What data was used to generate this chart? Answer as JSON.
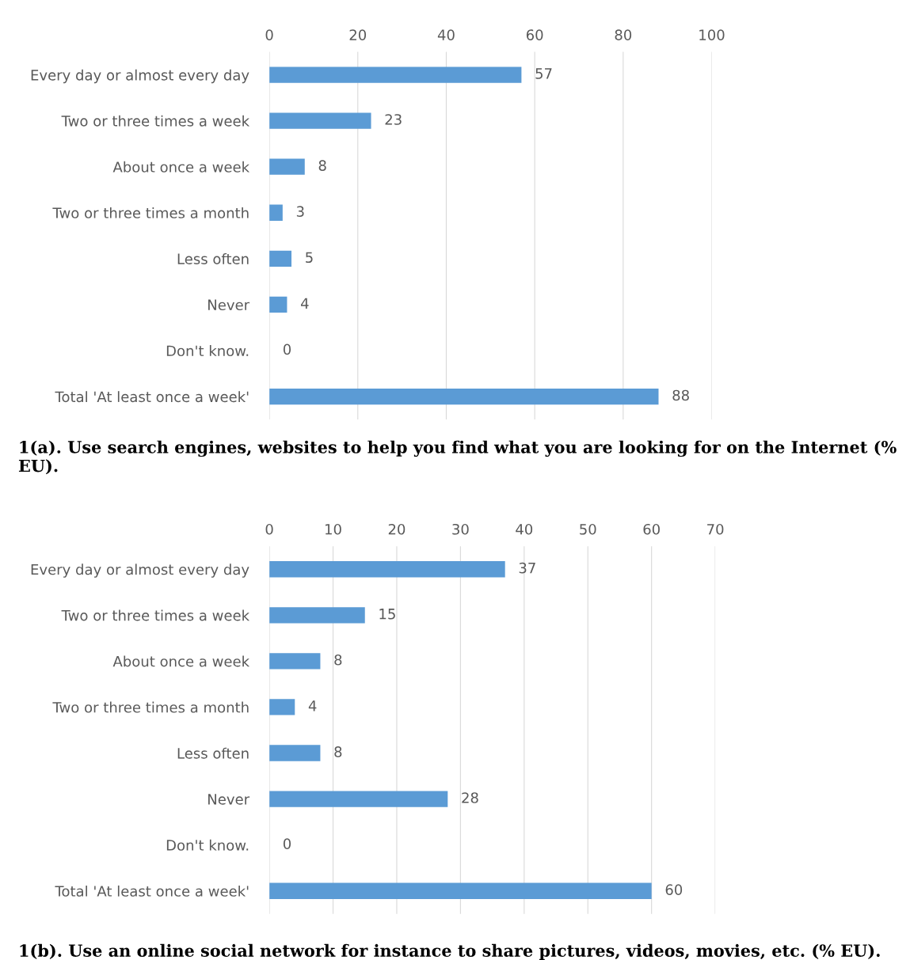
{
  "chart_data": [
    {
      "type": "bar",
      "orientation": "horizontal",
      "categories": [
        "Every day or almost every day",
        "Two or three times a week",
        "About once a week",
        "Two or three times a month",
        "Less often",
        "Never",
        "Don't know.",
        "Total 'At least once a week'"
      ],
      "values": [
        57,
        23,
        8,
        3,
        5,
        4,
        0,
        88
      ],
      "color": "#5b9bd5",
      "xlim": [
        0,
        100
      ],
      "xticks": [
        0,
        20,
        40,
        60,
        80,
        100
      ],
      "grid": "x",
      "data_labels": true,
      "annotations": [
        "1(a). Use search engines, websites to help you find what you are looking for on the Internet (% EU)."
      ]
    },
    {
      "type": "bar",
      "orientation": "horizontal",
      "categories": [
        "Every day or almost every day",
        "Two or three times a week",
        "About once a week",
        "Two or three times a month",
        "Less often",
        "Never",
        "Don't know.",
        "Total 'At least once a week'"
      ],
      "values": [
        37,
        15,
        8,
        4,
        8,
        28,
        0,
        60
      ],
      "color": "#5b9bd5",
      "xlim": [
        0,
        70
      ],
      "xticks": [
        0,
        10,
        20,
        30,
        40,
        50,
        60,
        70
      ],
      "grid": "x",
      "data_labels": true,
      "annotations": [
        "1(b). Use an online social network for instance to share pictures, videos, movies, etc. (% EU)."
      ]
    }
  ]
}
